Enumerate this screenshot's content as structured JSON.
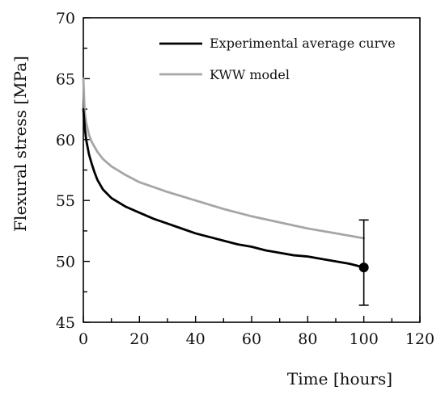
{
  "chart_data": {
    "type": "line",
    "title": "",
    "xlabel": "Time [hours]",
    "ylabel": "Flexural stress [MPa]",
    "xlim": [
      0,
      120
    ],
    "ylim": [
      45,
      70
    ],
    "x_ticks": [
      0,
      20,
      40,
      60,
      80,
      100,
      120
    ],
    "y_ticks": [
      45,
      50,
      55,
      60,
      65,
      70
    ],
    "grid": false,
    "legend_position": "top-right",
    "series": [
      {
        "name": "Experimental average curve",
        "color": "#000000",
        "x": [
          0,
          0.5,
          1,
          2,
          3,
          4,
          5,
          7,
          10,
          15,
          20,
          25,
          30,
          35,
          40,
          45,
          50,
          55,
          60,
          65,
          70,
          75,
          80,
          85,
          90,
          95,
          100
        ],
        "y": [
          62.5,
          61.0,
          60.0,
          58.8,
          58.0,
          57.3,
          56.7,
          55.9,
          55.2,
          54.5,
          54.0,
          53.5,
          53.1,
          52.7,
          52.3,
          52.0,
          51.7,
          51.4,
          51.2,
          50.9,
          50.7,
          50.5,
          50.4,
          50.2,
          50.0,
          49.8,
          49.5
        ]
      },
      {
        "name": "KWW model",
        "color": "#a6a6a6",
        "x": [
          0,
          0.5,
          1,
          2,
          3,
          5,
          7,
          10,
          15,
          20,
          25,
          30,
          40,
          50,
          60,
          70,
          80,
          90,
          100
        ],
        "y": [
          65.0,
          62.2,
          61.4,
          60.4,
          59.8,
          59.0,
          58.4,
          57.8,
          57.1,
          56.5,
          56.1,
          55.7,
          55.0,
          54.3,
          53.7,
          53.2,
          52.7,
          52.3,
          51.9
        ]
      }
    ],
    "end_point": {
      "x": 100,
      "y": 49.5,
      "error_low": 46.4,
      "error_high": 53.4,
      "color": "#000000"
    }
  }
}
